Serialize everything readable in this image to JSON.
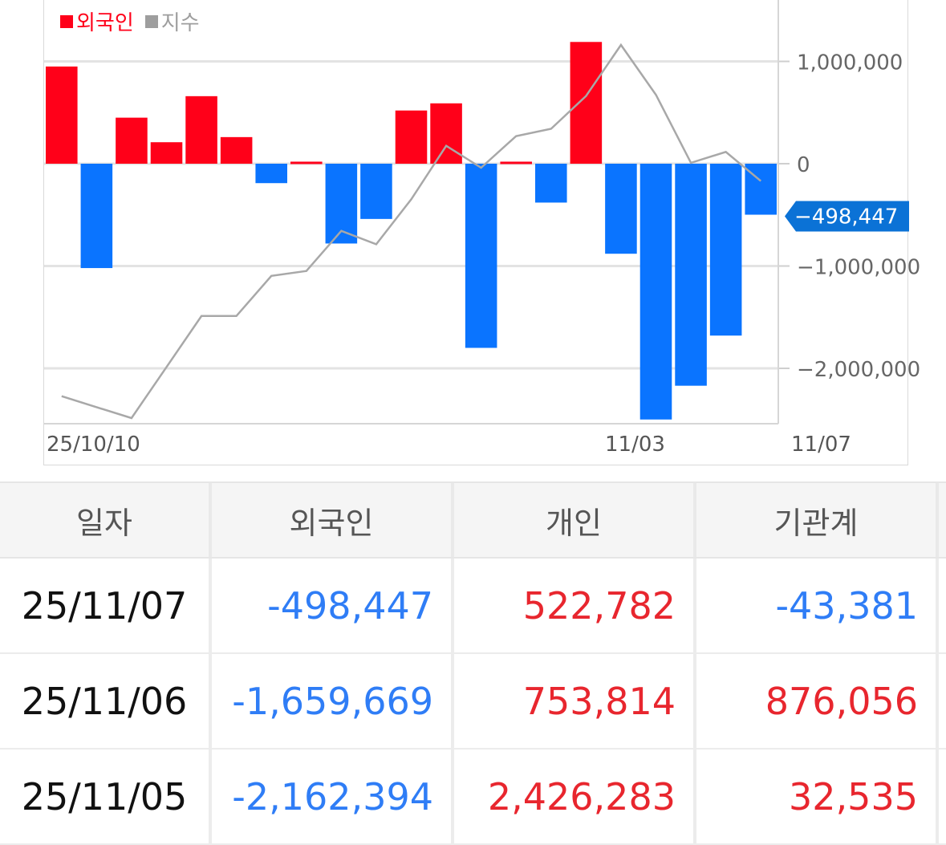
{
  "legend": {
    "foreign_label": "외국인",
    "index_label": "지수",
    "foreign_color": "#ff0019",
    "index_color": "#9e9e9e"
  },
  "colors": {
    "positive": "#ff0019",
    "negative": "#0a74ff",
    "positive_text": "#e8262e",
    "negative_text": "#2f7df6",
    "index_line": "#a8a8a8",
    "current_tag": "#0b72d6"
  },
  "chart_data": {
    "type": "bar",
    "series": [
      {
        "name": "외국인",
        "values": [
          950000,
          -1020000,
          450000,
          210000,
          660000,
          260000,
          -190000,
          20000,
          -780000,
          -540000,
          520000,
          590000,
          -1800000,
          20000,
          -380000,
          1190000,
          -880000,
          -2500000,
          -2170000,
          -1680000,
          -498447
        ]
      },
      {
        "name": "지수",
        "values": [
          3560,
          3470,
          3380,
          3800,
          4220,
          4220,
          4550,
          4590,
          4920,
          4810,
          5180,
          5620,
          5440,
          5700,
          5760,
          6030,
          6450,
          6040,
          5480,
          5570,
          5330
        ]
      }
    ],
    "x_tick_labels": [
      "25/10/10",
      "11/03",
      "11/07"
    ],
    "y_ticks": [
      "1,000,000",
      "0",
      "−1,000,000",
      "−2,000,000"
    ],
    "ylim": [
      -2550000,
      1600000
    ],
    "current_value_label": "−498,447",
    "grid": true,
    "legend_position": "top-left"
  },
  "table": {
    "headers": [
      "일자",
      "외국인",
      "개인",
      "기관계"
    ],
    "rows": [
      {
        "date": "25/11/07",
        "foreign": "-498,447",
        "foreign_sign": "neg",
        "individual": "522,782",
        "individual_sign": "pos",
        "institution": "-43,381",
        "institution_sign": "neg"
      },
      {
        "date": "25/11/06",
        "foreign": "-1,659,669",
        "foreign_sign": "neg",
        "individual": "753,814",
        "individual_sign": "pos",
        "institution": "876,056",
        "institution_sign": "pos"
      },
      {
        "date": "25/11/05",
        "foreign": "-2,162,394",
        "foreign_sign": "neg",
        "individual": "2,426,283",
        "individual_sign": "pos",
        "institution": "32,535",
        "institution_sign": "pos"
      }
    ]
  }
}
